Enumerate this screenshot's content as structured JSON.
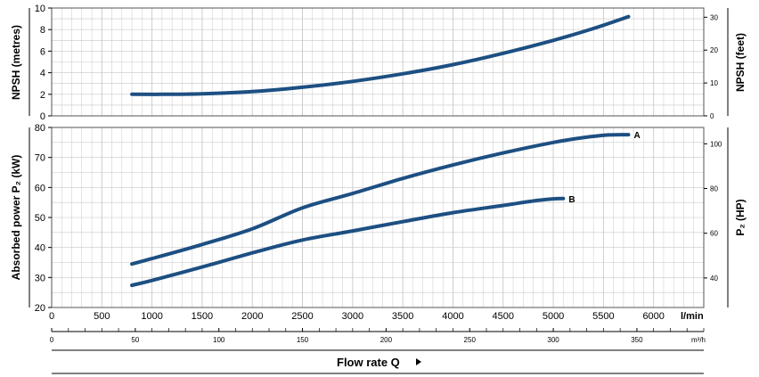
{
  "colors": {
    "curve": "#1d4f82",
    "grid": "#c8c8c8",
    "frame": "#555555"
  },
  "chart_data": [
    {
      "type": "line",
      "ylabel": "NPSH (metres)",
      "ylabel_right": "NPSH (feet)",
      "ylim": [
        0,
        10
      ],
      "yticks": [
        0,
        2,
        4,
        6,
        8,
        10
      ],
      "ylim_right": [
        0,
        32.8
      ],
      "yticks_right": [
        0,
        10,
        20,
        30
      ],
      "xlim": [
        0,
        6500
      ],
      "grid": true,
      "series": [
        {
          "x": [
            800,
            1100,
            1500,
            2000,
            2500,
            3000,
            3500,
            4000,
            4500,
            5000,
            5400,
            5750
          ],
          "y": [
            2.0,
            2.0,
            2.05,
            2.25,
            2.65,
            3.2,
            3.9,
            4.75,
            5.8,
            7.0,
            8.1,
            9.2
          ]
        }
      ]
    },
    {
      "type": "line",
      "ylabel": "Absorbed power P₂ (kW)",
      "ylabel_right": "P₂ (HP)",
      "ylim": [
        20,
        80
      ],
      "yticks": [
        20,
        30,
        40,
        50,
        60,
        70,
        80
      ],
      "ylim_right": [
        26.8,
        107.3
      ],
      "yticks_right": [
        40,
        60,
        80,
        100
      ],
      "xlim": [
        0,
        6500
      ],
      "xticks": [
        0,
        500,
        1000,
        1500,
        2000,
        2500,
        3000,
        3500,
        4000,
        4500,
        5000,
        5500,
        6000
      ],
      "xunit": "l/min",
      "grid": true,
      "series": [
        {
          "name": "A",
          "x": [
            800,
            1000,
            1500,
            2000,
            2500,
            3000,
            3500,
            4000,
            4500,
            5000,
            5300,
            5550,
            5750
          ],
          "y": [
            34.5,
            36.3,
            41.0,
            46.2,
            53.2,
            58.0,
            63.0,
            67.5,
            71.5,
            75.0,
            76.6,
            77.5,
            77.6
          ]
        },
        {
          "name": "B",
          "x": [
            800,
            1000,
            1500,
            2000,
            2500,
            3000,
            3500,
            4000,
            4500,
            4800,
            5000,
            5100
          ],
          "y": [
            27.4,
            29.0,
            33.5,
            38.2,
            42.5,
            45.5,
            48.6,
            51.6,
            54.0,
            55.5,
            56.2,
            56.3
          ]
        }
      ]
    }
  ],
  "secondary_axis": {
    "xlim": [
      0,
      390
    ],
    "xticks": [
      0,
      50,
      100,
      150,
      200,
      250,
      300,
      350
    ],
    "unit": "m³/h"
  },
  "footer": {
    "label": "Flow rate Q"
  }
}
